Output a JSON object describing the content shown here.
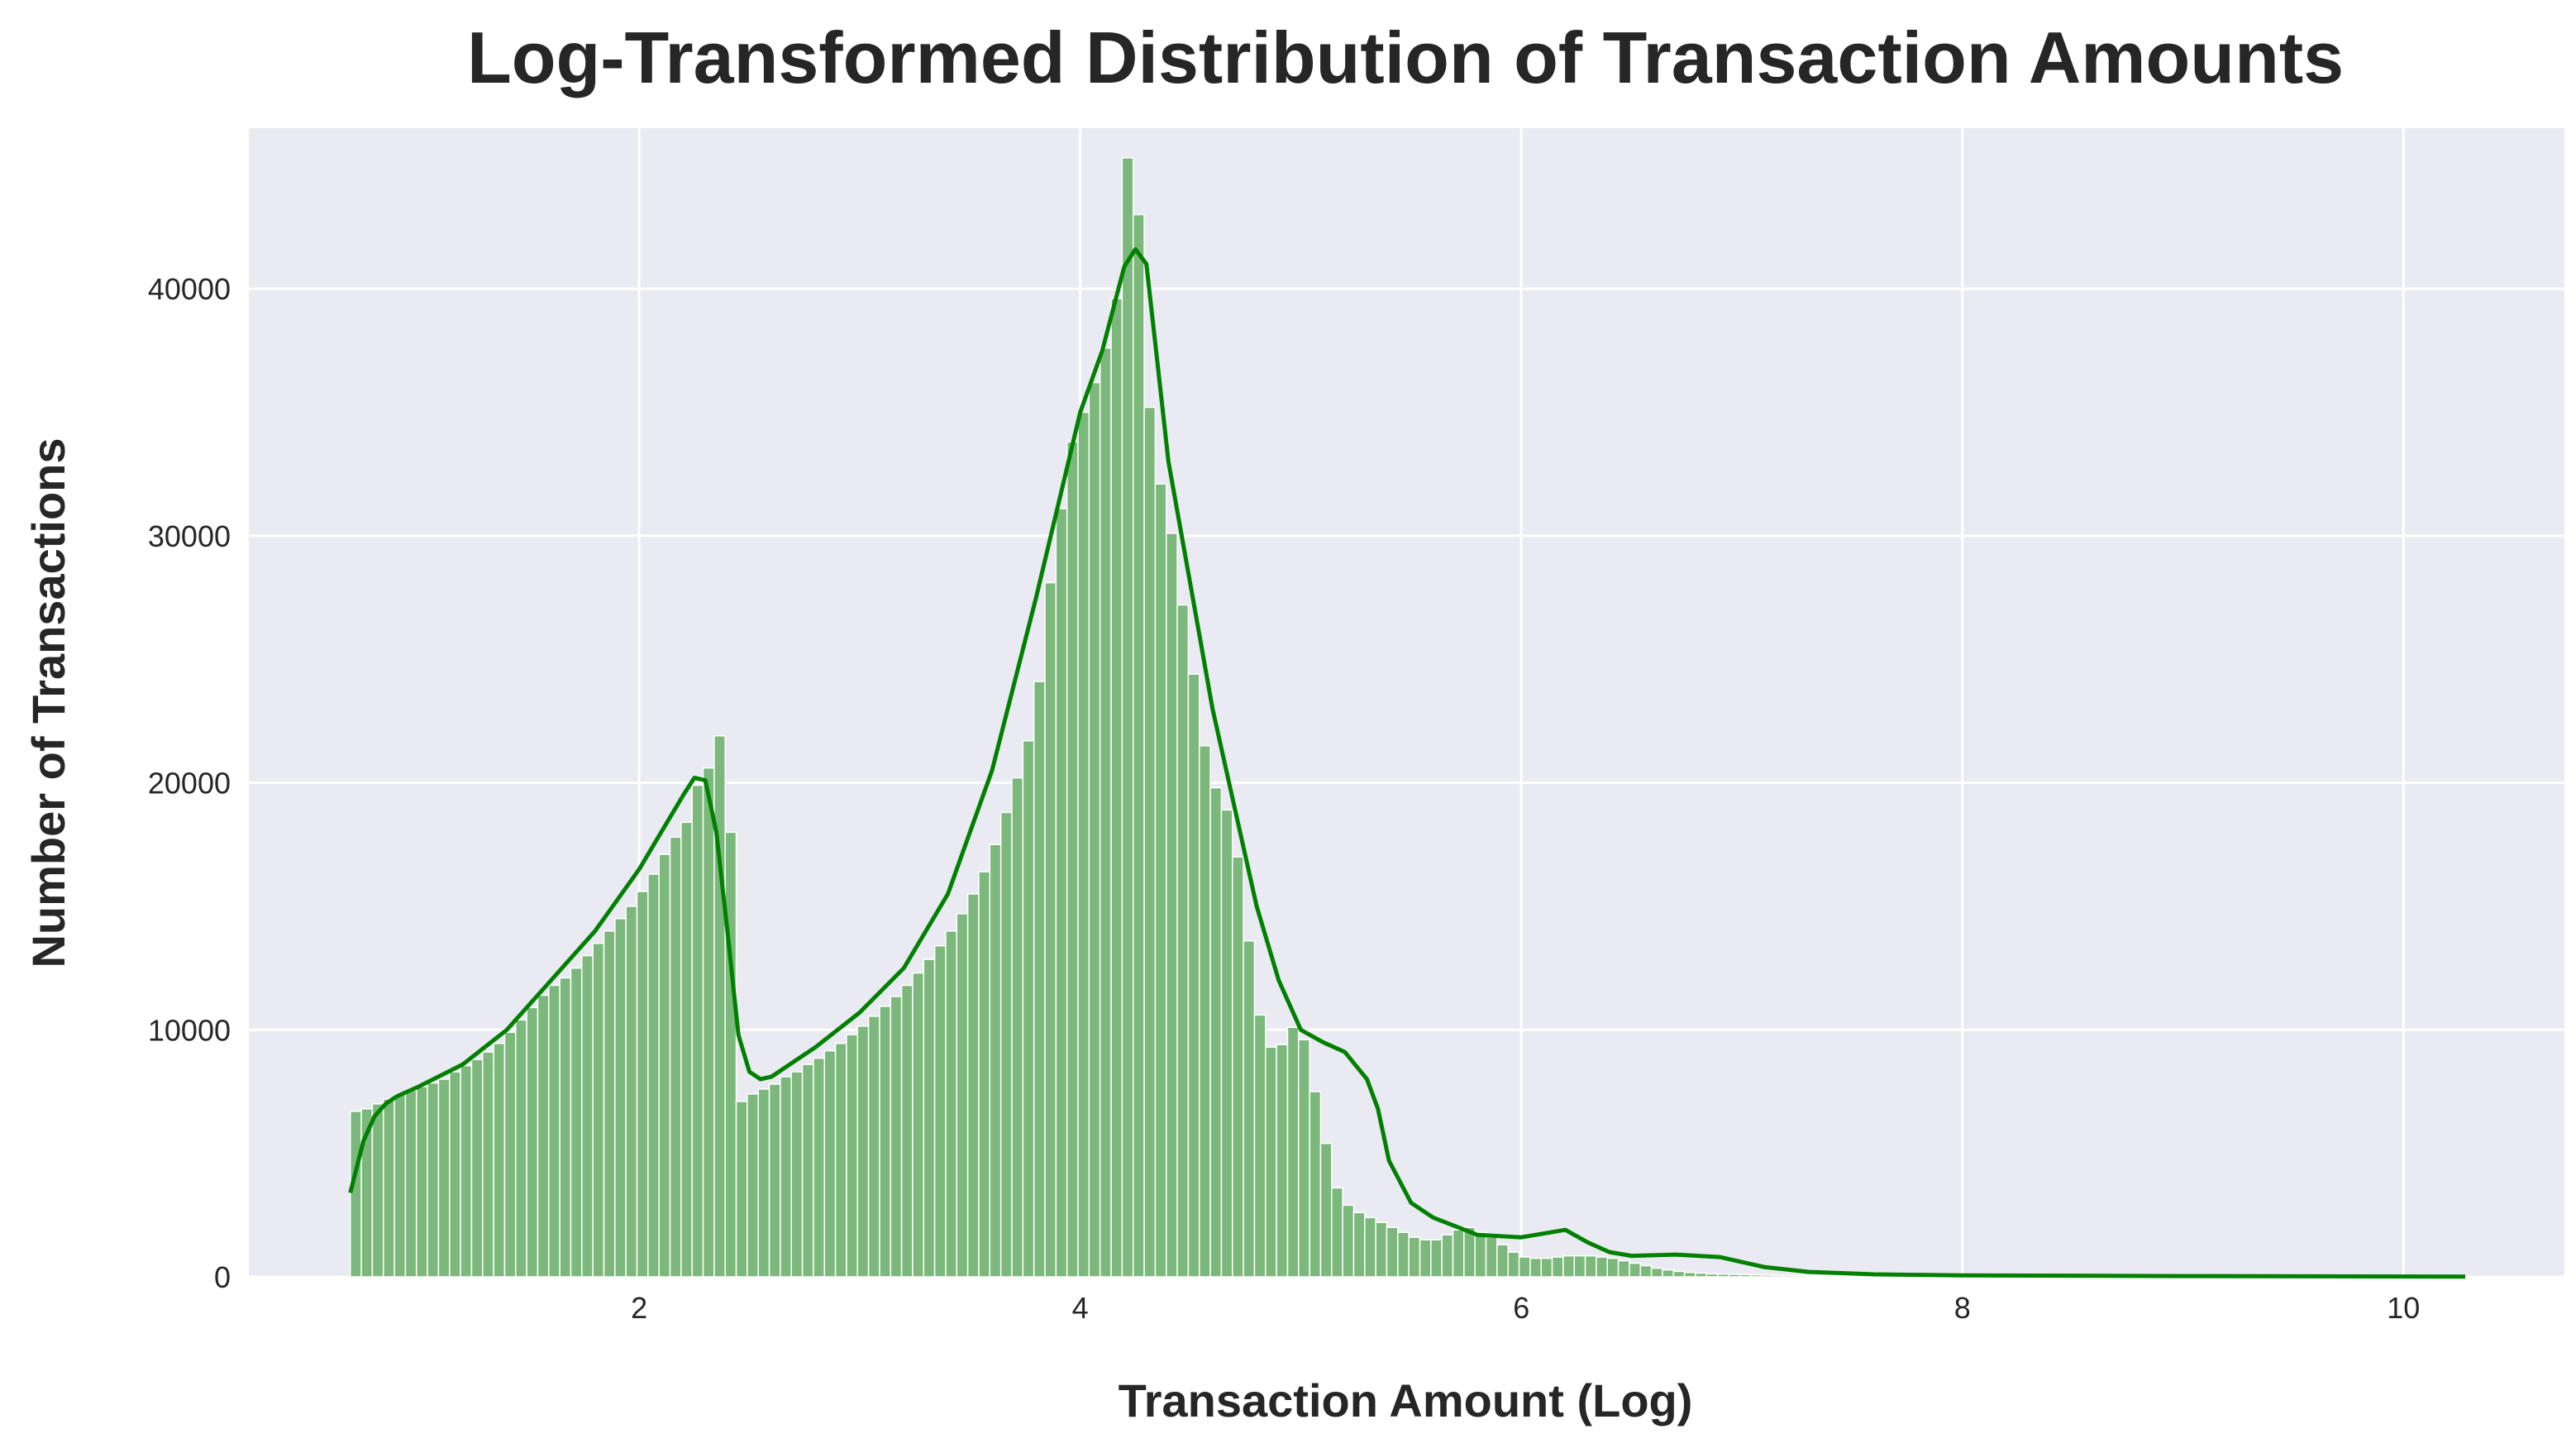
{
  "chart_data": {
    "type": "bar",
    "title": "Log-Transformed Distribution of Transaction Amounts",
    "xlabel": "Transaction Amount (Log)",
    "ylabel": "Number of Transactions",
    "xlim": [
      0.23,
      10.73
    ],
    "ylim": [
      0,
      46500
    ],
    "xticks": [
      2,
      4,
      6,
      8,
      10
    ],
    "yticks": [
      0,
      10000,
      20000,
      30000,
      40000
    ],
    "grid": true,
    "colors": {
      "background": "#eaeaf2",
      "bar": "#7cb87c",
      "kde": "#008000"
    },
    "bins": {
      "start": 0.69,
      "width": 0.05,
      "counts": [
        6700,
        6800,
        7000,
        7200,
        7400,
        7550,
        7700,
        7850,
        8000,
        8300,
        8550,
        8800,
        9100,
        9450,
        9900,
        10400,
        10900,
        11400,
        11800,
        12100,
        12500,
        13000,
        13500,
        14000,
        14500,
        15000,
        15600,
        16300,
        17100,
        17800,
        18400,
        19900,
        20600,
        21900,
        18000,
        7100,
        7400,
        7600,
        7800,
        8100,
        8300,
        8600,
        8850,
        9150,
        9450,
        9800,
        10150,
        10550,
        10950,
        11350,
        11800,
        12300,
        12850,
        13400,
        14000,
        14700,
        15500,
        16400,
        17500,
        18800,
        20200,
        21700,
        24100,
        28100,
        31100,
        33800,
        35000,
        36200,
        37600,
        39600,
        45300,
        43000,
        35200,
        32100,
        30100,
        27200,
        24400,
        21500,
        19800,
        18900,
        17000,
        13600,
        10600,
        9300,
        9400,
        10100,
        9600,
        7500,
        5400,
        3600,
        2900,
        2600,
        2400,
        2200,
        2000,
        1800,
        1600,
        1500,
        1500,
        1700,
        1900,
        2000,
        1800,
        1600,
        1300,
        1000,
        800,
        750,
        750,
        800,
        850,
        850,
        850,
        800,
        750,
        650,
        550,
        450,
        350,
        280,
        220,
        180,
        150,
        120,
        110,
        100,
        90,
        80,
        70,
        65,
        60,
        55,
        50,
        45,
        40,
        35,
        30,
        30,
        25,
        25,
        20,
        20,
        20,
        15,
        15,
        15,
        15,
        15,
        10,
        10,
        10,
        10,
        10,
        10,
        10,
        10,
        10,
        10,
        8,
        8,
        8,
        8,
        8,
        8,
        8,
        8,
        8,
        8,
        8,
        8,
        8,
        8,
        8,
        8,
        8,
        8,
        8,
        8,
        8,
        8,
        8,
        8,
        8,
        8,
        8,
        8,
        8,
        8,
        8,
        8,
        8
      ]
    },
    "kde": {
      "x": [
        0.69,
        0.75,
        0.8,
        0.85,
        0.9,
        1.0,
        1.2,
        1.4,
        1.6,
        1.8,
        2.0,
        2.1,
        2.2,
        2.25,
        2.3,
        2.35,
        2.4,
        2.45,
        2.5,
        2.55,
        2.6,
        2.7,
        2.8,
        3.0,
        3.2,
        3.4,
        3.6,
        3.8,
        4.0,
        4.1,
        4.2,
        4.25,
        4.3,
        4.35,
        4.4,
        4.5,
        4.6,
        4.7,
        4.8,
        4.9,
        5.0,
        5.1,
        5.2,
        5.3,
        5.35,
        5.4,
        5.5,
        5.6,
        5.8,
        6.0,
        6.1,
        6.2,
        6.3,
        6.4,
        6.5,
        6.7,
        6.9,
        7.1,
        7.3,
        7.6,
        8.0,
        9.0,
        10.28
      ],
      "y": [
        3400,
        5500,
        6500,
        7000,
        7300,
        7700,
        8600,
        10000,
        12000,
        14000,
        16500,
        18000,
        19500,
        20200,
        20100,
        18000,
        14000,
        9800,
        8300,
        8000,
        8100,
        8700,
        9300,
        10700,
        12500,
        15500,
        20500,
        27500,
        35000,
        37500,
        40900,
        41600,
        41000,
        37000,
        33000,
        28000,
        23000,
        19000,
        15000,
        12000,
        10000,
        9500,
        9100,
        8000,
        6800,
        4700,
        3000,
        2400,
        1700,
        1600,
        1750,
        1900,
        1400,
        1000,
        850,
        900,
        800,
        400,
        200,
        100,
        60,
        30,
        10
      ]
    }
  }
}
